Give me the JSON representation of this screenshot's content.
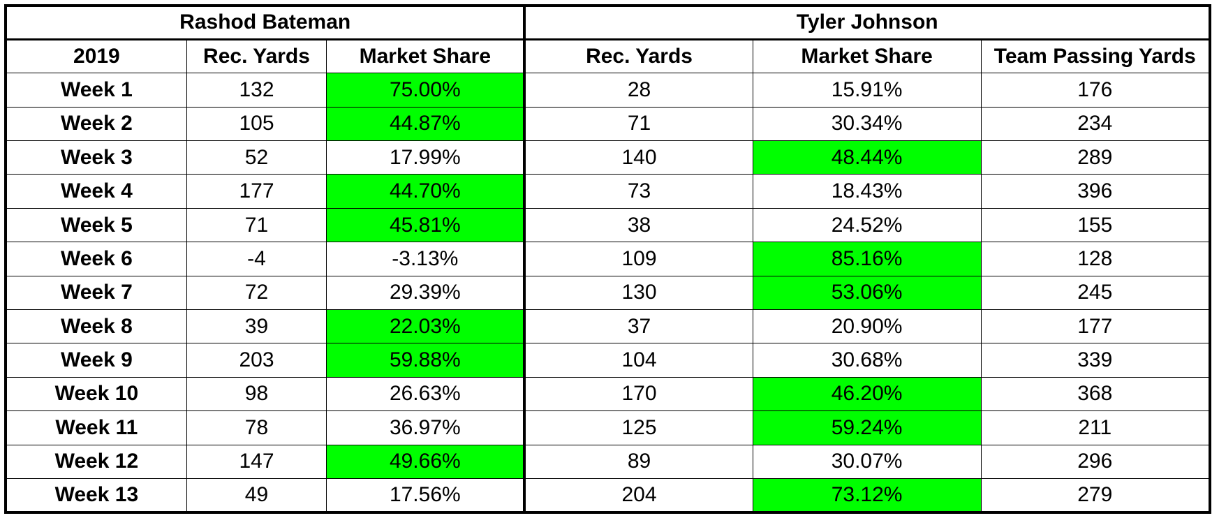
{
  "players": {
    "left_name": "Rashod Bateman",
    "right_name": "Tyler Johnson"
  },
  "headers": {
    "season": "2019",
    "rb_rec_yards": "Rec. Yards",
    "rb_market_share": "Market Share",
    "tj_rec_yards": "Rec. Yards",
    "tj_market_share": "Market Share",
    "team_passing_yards": "Team Passing Yards"
  },
  "highlight_color": "#00ff00",
  "rows": [
    {
      "week": "Week 1",
      "rb_yards": "132",
      "rb_share": "75.00%",
      "rb_hi": true,
      "tj_yards": "28",
      "tj_share": "15.91%",
      "tj_hi": false,
      "team_yards": "176"
    },
    {
      "week": "Week 2",
      "rb_yards": "105",
      "rb_share": "44.87%",
      "rb_hi": true,
      "tj_yards": "71",
      "tj_share": "30.34%",
      "tj_hi": false,
      "team_yards": "234"
    },
    {
      "week": "Week 3",
      "rb_yards": "52",
      "rb_share": "17.99%",
      "rb_hi": false,
      "tj_yards": "140",
      "tj_share": "48.44%",
      "tj_hi": true,
      "team_yards": "289"
    },
    {
      "week": "Week 4",
      "rb_yards": "177",
      "rb_share": "44.70%",
      "rb_hi": true,
      "tj_yards": "73",
      "tj_share": "18.43%",
      "tj_hi": false,
      "team_yards": "396"
    },
    {
      "week": "Week 5",
      "rb_yards": "71",
      "rb_share": "45.81%",
      "rb_hi": true,
      "tj_yards": "38",
      "tj_share": "24.52%",
      "tj_hi": false,
      "team_yards": "155"
    },
    {
      "week": "Week 6",
      "rb_yards": "-4",
      "rb_share": "-3.13%",
      "rb_hi": false,
      "tj_yards": "109",
      "tj_share": "85.16%",
      "tj_hi": true,
      "team_yards": "128"
    },
    {
      "week": "Week 7",
      "rb_yards": "72",
      "rb_share": "29.39%",
      "rb_hi": false,
      "tj_yards": "130",
      "tj_share": "53.06%",
      "tj_hi": true,
      "team_yards": "245"
    },
    {
      "week": "Week 8",
      "rb_yards": "39",
      "rb_share": "22.03%",
      "rb_hi": true,
      "tj_yards": "37",
      "tj_share": "20.90%",
      "tj_hi": false,
      "team_yards": "177"
    },
    {
      "week": "Week 9",
      "rb_yards": "203",
      "rb_share": "59.88%",
      "rb_hi": true,
      "tj_yards": "104",
      "tj_share": "30.68%",
      "tj_hi": false,
      "team_yards": "339"
    },
    {
      "week": "Week 10",
      "rb_yards": "98",
      "rb_share": "26.63%",
      "rb_hi": false,
      "tj_yards": "170",
      "tj_share": "46.20%",
      "tj_hi": true,
      "team_yards": "368"
    },
    {
      "week": "Week 11",
      "rb_yards": "78",
      "rb_share": "36.97%",
      "rb_hi": false,
      "tj_yards": "125",
      "tj_share": "59.24%",
      "tj_hi": true,
      "team_yards": "211"
    },
    {
      "week": "Week 12",
      "rb_yards": "147",
      "rb_share": "49.66%",
      "rb_hi": true,
      "tj_yards": "89",
      "tj_share": "30.07%",
      "tj_hi": false,
      "team_yards": "296"
    },
    {
      "week": "Week 13",
      "rb_yards": "49",
      "rb_share": "17.56%",
      "rb_hi": false,
      "tj_yards": "204",
      "tj_share": "73.12%",
      "tj_hi": true,
      "team_yards": "279"
    }
  ]
}
